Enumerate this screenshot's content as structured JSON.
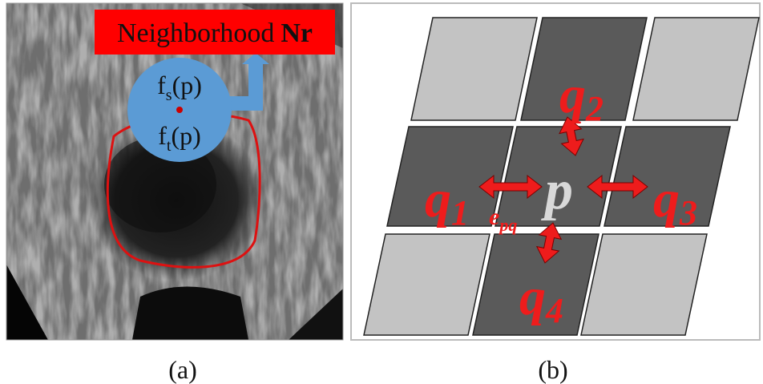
{
  "panel_a": {
    "label": {
      "text": "Neighborhood",
      "bold": "Nr"
    },
    "source": {
      "base": "f",
      "sub": "s",
      "rest": "(p)"
    },
    "target": {
      "base": "f",
      "sub": "t",
      "rest": "(p)"
    },
    "caption": "(a)"
  },
  "panel_b": {
    "q1": {
      "base": "q",
      "sub": "1"
    },
    "q2": {
      "base": "q",
      "sub": "2"
    },
    "q3": {
      "base": "q",
      "sub": "3"
    },
    "q4": {
      "base": "q",
      "sub": "4"
    },
    "p": "p",
    "edge": {
      "base": "e",
      "sub": "pq"
    },
    "caption": "(b)"
  }
}
